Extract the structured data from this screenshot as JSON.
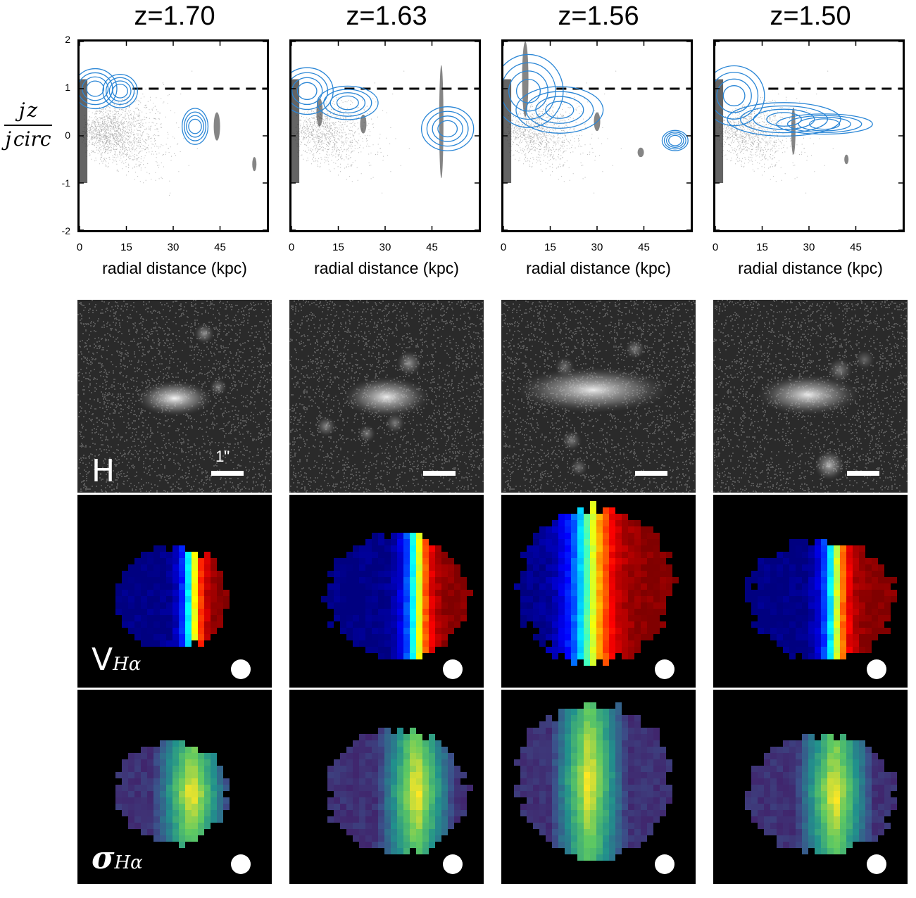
{
  "panel_titles": [
    "z=1.70",
    "z=1.63",
    "z=1.56",
    "z=1.50"
  ],
  "y_axis_label": {
    "numerator": "j z",
    "denominator": "j circ"
  },
  "y_ticks": [
    "2",
    "1",
    "0",
    "-1",
    "-2"
  ],
  "x_ticks": [
    "0",
    "15",
    "30",
    "45"
  ],
  "x_axis_label": "radial distance (kpc)",
  "row_labels": {
    "hband": "H",
    "velocity": "V",
    "velocity_sub": "Hα",
    "dispersion": "σ",
    "dispersion_sub": "Hα"
  },
  "scalebar_label": "1\"",
  "colors": {
    "contour": "#2a86d6",
    "dashed_line": "#000000",
    "velocity_low": "#00008f",
    "velocity_high": "#8f0000",
    "dispersion_low": "#440154",
    "dispersion_high": "#fde725"
  },
  "chart_data": [
    {
      "type": "scatter",
      "title": "z=1.70",
      "xlabel": "radial distance (kpc)",
      "ylabel": "jz/jcirc",
      "xlim": [
        0,
        60
      ],
      "ylim": [
        -2,
        2
      ],
      "reference_line_y": 1
    },
    {
      "type": "scatter",
      "title": "z=1.63",
      "xlabel": "radial distance (kpc)",
      "ylabel": "jz/jcirc",
      "xlim": [
        0,
        60
      ],
      "ylim": [
        -2,
        2
      ],
      "reference_line_y": 1
    },
    {
      "type": "scatter",
      "title": "z=1.56",
      "xlabel": "radial distance (kpc)",
      "ylabel": "jz/jcirc",
      "xlim": [
        0,
        60
      ],
      "ylim": [
        -2,
        2
      ],
      "reference_line_y": 1
    },
    {
      "type": "scatter",
      "title": "z=1.50",
      "xlabel": "radial distance (kpc)",
      "ylabel": "jz/jcirc",
      "xlim": [
        0,
        60
      ],
      "ylim": [
        -2,
        2
      ],
      "reference_line_y": 1
    }
  ]
}
